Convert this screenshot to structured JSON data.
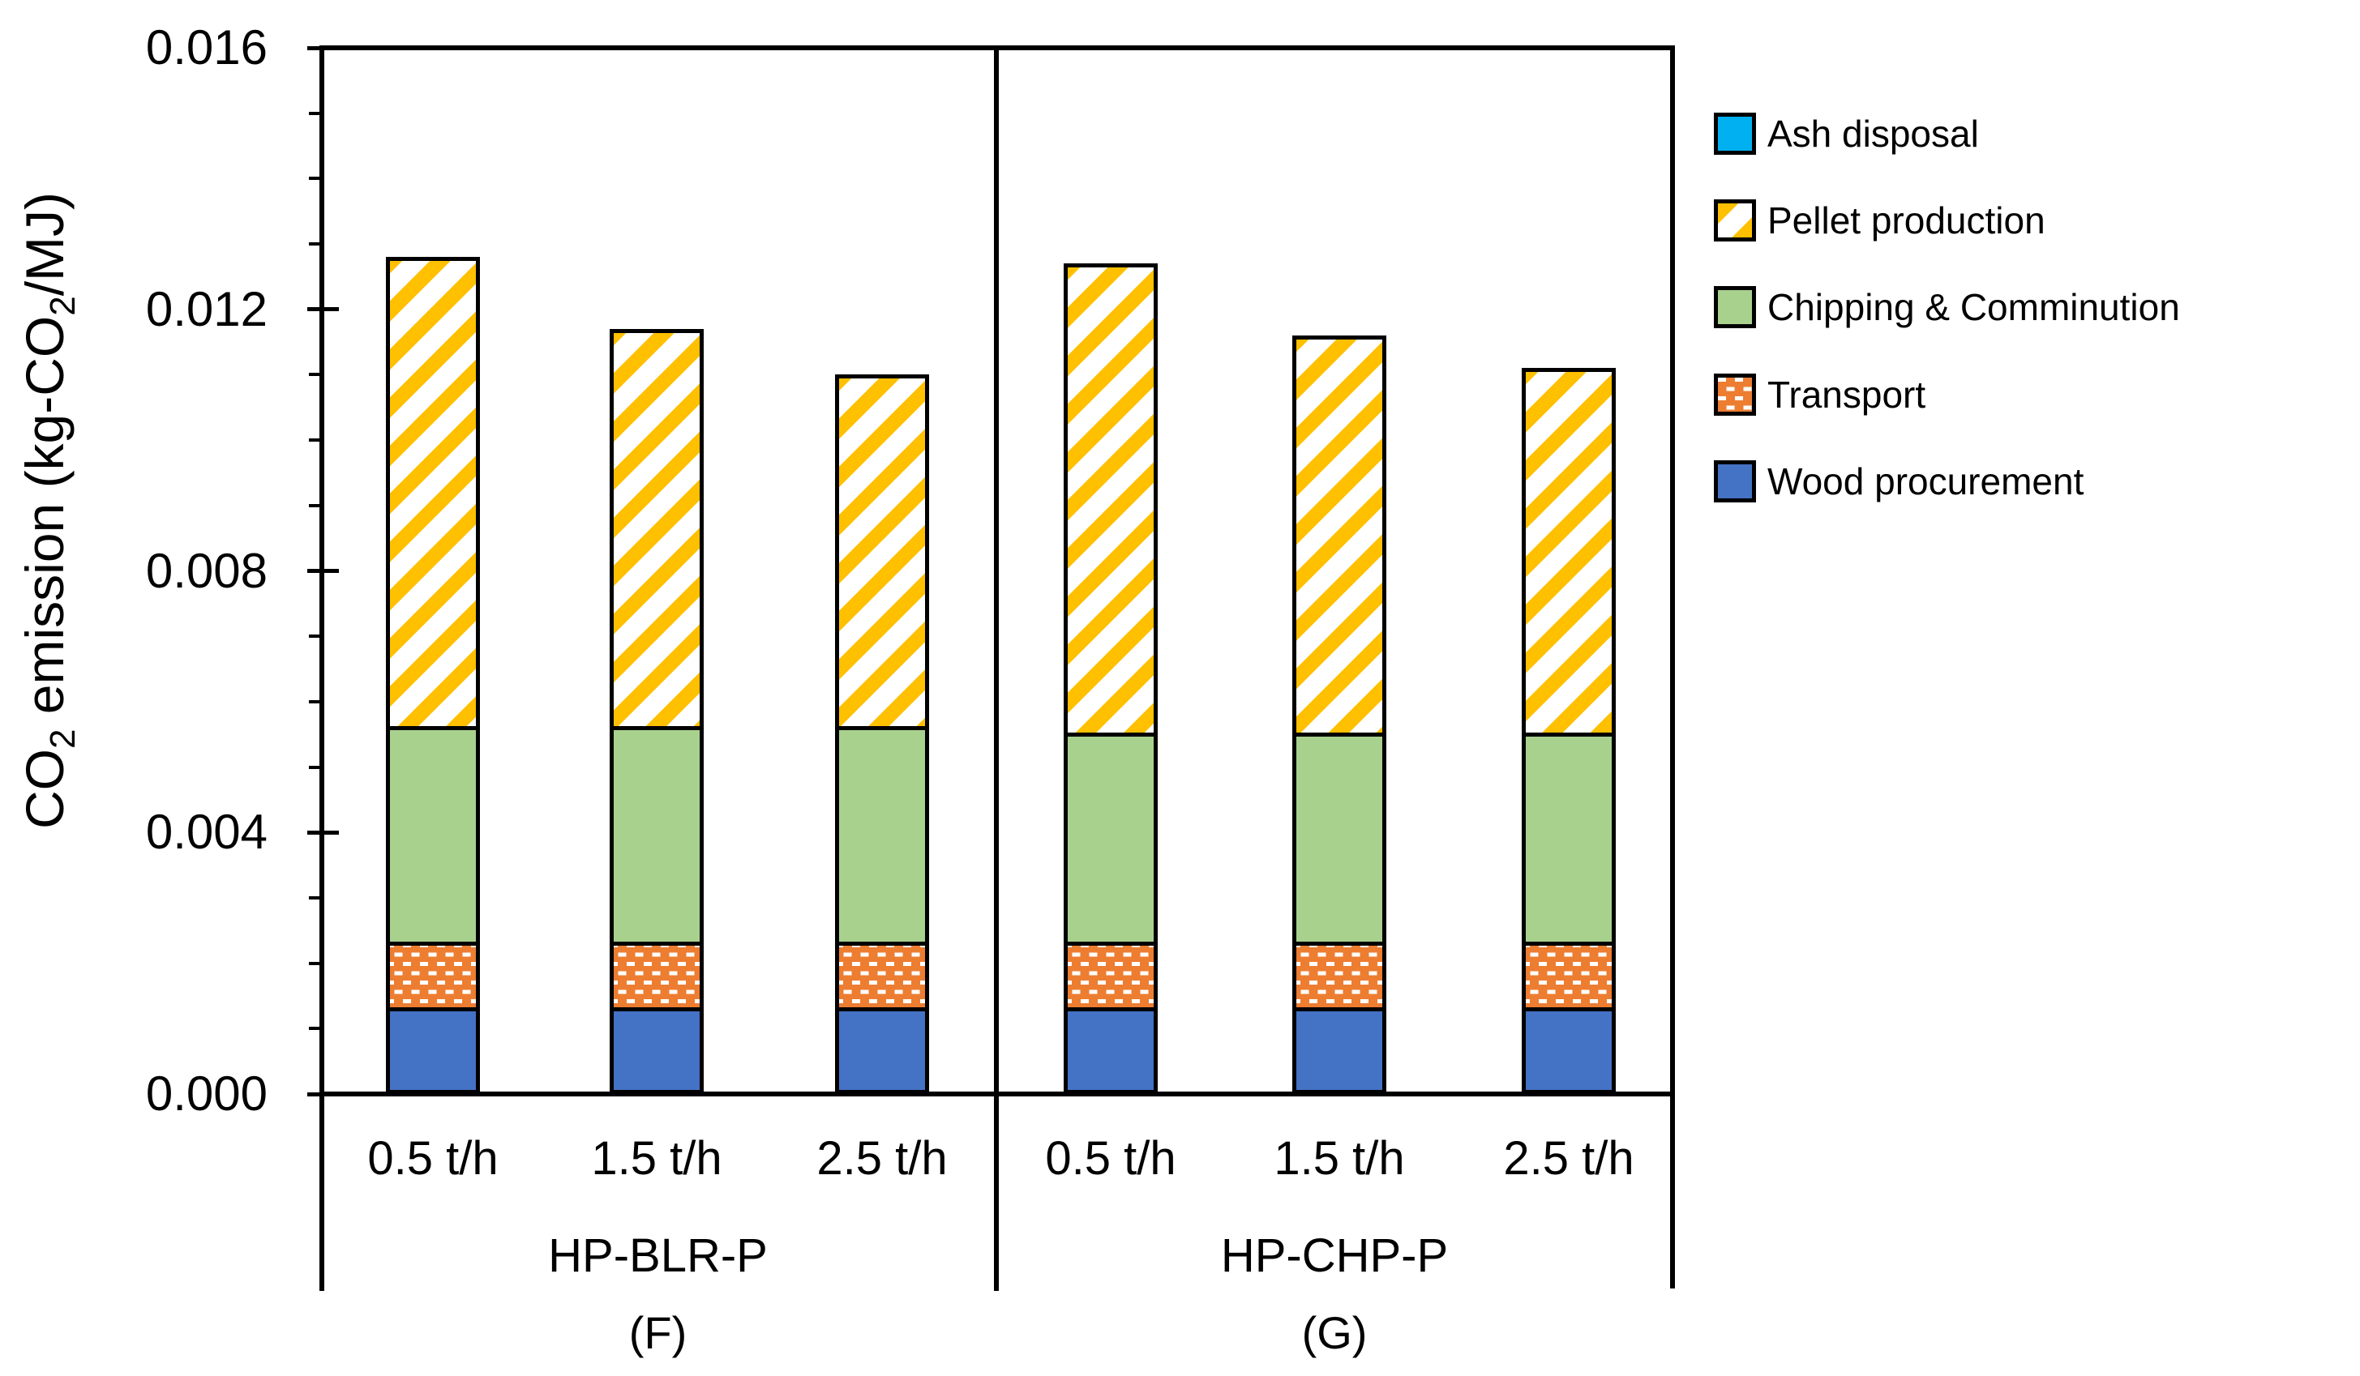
{
  "chart_data": {
    "type": "bar",
    "stacked": true,
    "grid": false,
    "legend_position": "right",
    "y_axis": {
      "title_parts": [
        {
          "text": "CO",
          "sub": false
        },
        {
          "text": "2",
          "sub": true
        },
        {
          "text": " emission (kg-CO",
          "sub": false
        },
        {
          "text": "2",
          "sub": true
        },
        {
          "text": "/MJ)",
          "sub": false
        }
      ],
      "min": 0,
      "max": 0.016,
      "major_tick_interval": 0.004,
      "minor_tick_interval": 0.001,
      "tick_labels": [
        "0.000",
        "0.004",
        "0.008",
        "0.012",
        "0.016"
      ]
    },
    "groups": [
      {
        "label": "HP-BLR-P",
        "panel_letter": "(F)",
        "categories": [
          "0.5 t/h",
          "1.5 t/h",
          "2.5 t/h"
        ]
      },
      {
        "label": "HP-CHP-P",
        "panel_letter": "(G)",
        "categories": [
          "0.5 t/h",
          "1.5 t/h",
          "2.5 t/h"
        ]
      }
    ],
    "series": [
      {
        "name": "Wood procurement",
        "color": "#4472C4",
        "pattern": "solid",
        "values": [
          [
            0.0013,
            0.0013,
            0.0013
          ],
          [
            0.0013,
            0.0013,
            0.0013
          ]
        ]
      },
      {
        "name": "Transport",
        "color": "#ED7D31",
        "pattern": "white-dashes",
        "values": [
          [
            0.001,
            0.001,
            0.001
          ],
          [
            0.001,
            0.001,
            0.001
          ]
        ]
      },
      {
        "name": "Chipping & Comminution",
        "color": "#A9D18E",
        "pattern": "solid",
        "values": [
          [
            0.0033,
            0.0033,
            0.0033
          ],
          [
            0.0032,
            0.0032,
            0.0032
          ]
        ]
      },
      {
        "name": "Pellet production",
        "color": "#FFC000",
        "pattern": "diagonal-hatch",
        "values": [
          [
            0.0072,
            0.0061,
            0.0054
          ],
          [
            0.0072,
            0.0061,
            0.0056
          ]
        ]
      },
      {
        "name": "Ash disposal",
        "color": "#00B0F0",
        "pattern": "solid",
        "values": [
          [
            0.0,
            0.0,
            0.0
          ],
          [
            0.0,
            0.0,
            0.0
          ]
        ]
      }
    ],
    "bar_totals": [
      [
        0.0128,
        0.0117,
        0.011
      ],
      [
        0.0127,
        0.0116,
        0.0111
      ]
    ],
    "legend": [
      "Ash disposal",
      "Pellet production",
      "Chipping & Comminution",
      "Transport",
      "Wood procurement"
    ]
  }
}
